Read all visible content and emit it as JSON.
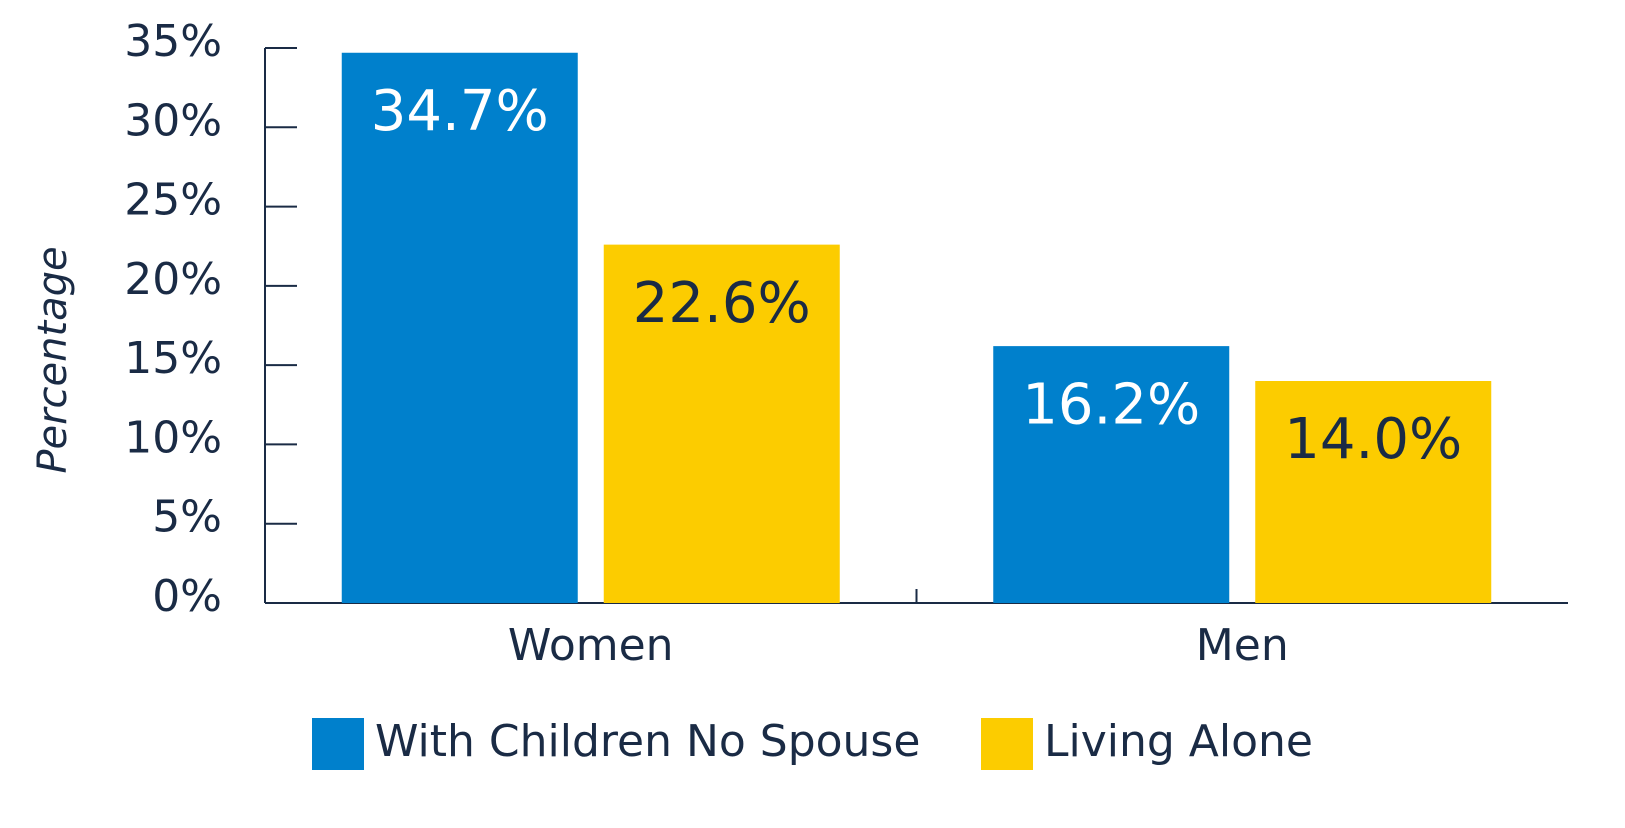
{
  "chart_data": {
    "type": "bar",
    "y_label": "Percentage",
    "categories": [
      "Women",
      "Men"
    ],
    "series": [
      {
        "name": "With Children No Spouse",
        "color": "#0080cc",
        "values": [
          34.7,
          16.2
        ],
        "value_labels": [
          "34.7%",
          "16.2%"
        ]
      },
      {
        "name": "Living Alone",
        "color": "#fccc00",
        "values": [
          22.6,
          14.0
        ],
        "value_labels": [
          "22.6%",
          "14.0%"
        ]
      }
    ],
    "ylim": [
      0,
      35
    ],
    "yticks": [
      {
        "value": 0,
        "label": "0%"
      },
      {
        "value": 5,
        "label": "5%"
      },
      {
        "value": 10,
        "label": "10%"
      },
      {
        "value": 15,
        "label": "15%"
      },
      {
        "value": 20,
        "label": "20%"
      },
      {
        "value": 25,
        "label": "25%"
      },
      {
        "value": 30,
        "label": "30%"
      },
      {
        "value": 35,
        "label": "35%"
      }
    ],
    "legend": "bottom",
    "grid": false
  }
}
